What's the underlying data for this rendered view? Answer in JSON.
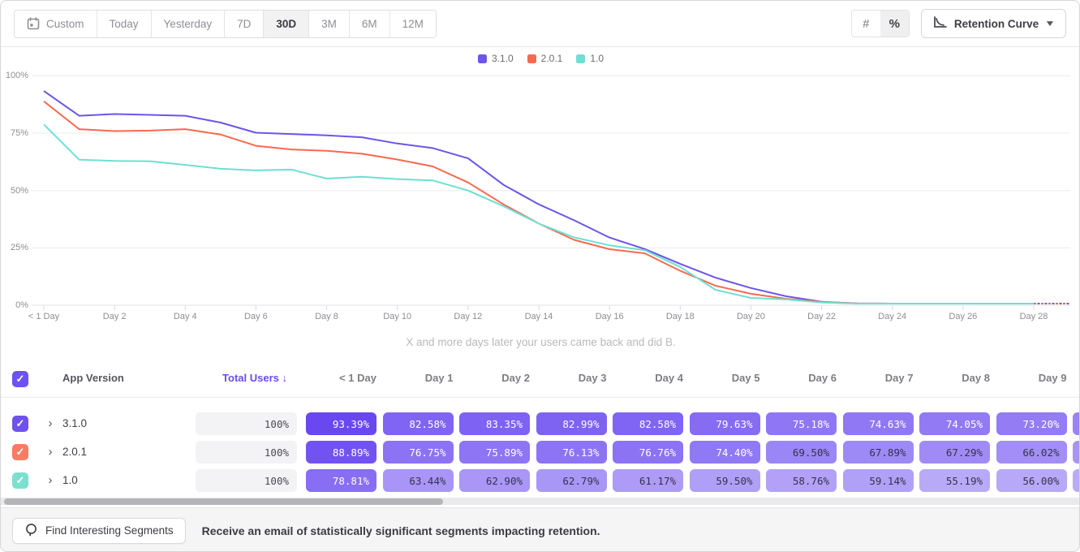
{
  "toolbar": {
    "date_ranges": [
      "Custom",
      "Today",
      "Yesterday",
      "7D",
      "30D",
      "3M",
      "6M",
      "12M"
    ],
    "selected_range": "30D",
    "value_modes": [
      "#",
      "%"
    ],
    "selected_mode": "%",
    "chart_type_label": "Retention Curve"
  },
  "chart_data": {
    "type": "line",
    "title": "",
    "subtitle": "X and more days later your users came back and did B.",
    "legend_position": "top-center",
    "grid": "horizontal",
    "ylim": [
      0,
      100
    ],
    "yticks": [
      "100%",
      "75%",
      "50%",
      "25%",
      "0%"
    ],
    "ytick_values": [
      100,
      75,
      50,
      25,
      0
    ],
    "x_tick_labels": [
      "< 1 Day",
      "Day 2",
      "Day 4",
      "Day 6",
      "Day 8",
      "Day 10",
      "Day 12",
      "Day 14",
      "Day 16",
      "Day 18",
      "Day 20",
      "Day 22",
      "Day 24",
      "Day 26",
      "Day 28"
    ],
    "x_days": [
      0,
      1,
      2,
      3,
      4,
      5,
      6,
      7,
      8,
      9,
      10,
      11,
      12,
      13,
      14,
      15,
      16,
      17,
      18,
      19,
      20,
      21,
      22,
      23,
      24,
      25,
      26,
      27,
      28
    ],
    "series": [
      {
        "name": "3.1.0",
        "color": "#6C55E9",
        "values": [
          93.39,
          82.58,
          83.35,
          82.99,
          82.58,
          79.63,
          75.18,
          74.63,
          74.05,
          73.2,
          70.5,
          68.5,
          64.0,
          52.5,
          44.0,
          37.0,
          29.5,
          24.5,
          18.0,
          12.0,
          7.5,
          3.9,
          1.5,
          0.8,
          0.7,
          0.7,
          0.7,
          0.7,
          0.7
        ]
      },
      {
        "name": "2.0.1",
        "color": "#F8694F",
        "values": [
          88.89,
          76.75,
          75.89,
          76.13,
          76.76,
          74.4,
          69.5,
          67.89,
          67.29,
          66.02,
          63.5,
          60.5,
          53.5,
          44.0,
          35.6,
          28.5,
          24.4,
          22.6,
          15.0,
          8.5,
          5.0,
          2.8,
          1.4,
          0.8,
          0.7,
          0.7,
          0.7,
          0.7,
          0.7
        ]
      },
      {
        "name": "1.0",
        "color": "#6EDFD2",
        "values": [
          78.81,
          63.44,
          62.9,
          62.79,
          61.17,
          59.5,
          58.76,
          59.14,
          55.19,
          56.0,
          55.0,
          54.4,
          50.0,
          43.2,
          35.6,
          29.6,
          26.1,
          24.0,
          16.7,
          6.7,
          3.2,
          2.5,
          1.2,
          0.7,
          0.7,
          0.7,
          0.7,
          0.7,
          0.7
        ]
      }
    ],
    "incomplete_tail": {
      "start_day": 28,
      "value": 0.7,
      "style": "dashed"
    }
  },
  "table": {
    "app_version_header": "App Version",
    "total_users_header": "Total Users ↓",
    "day_headers": [
      "< 1 Day",
      "Day 1",
      "Day 2",
      "Day 3",
      "Day 4",
      "Day 5",
      "Day 6",
      "Day 7",
      "Day 8",
      "Day 9"
    ],
    "rows": [
      {
        "version": "3.1.0",
        "swatch_color": "#6E52F0",
        "total": "100%",
        "cells": [
          "93.39%",
          "82.58%",
          "83.35%",
          "82.99%",
          "82.58%",
          "79.63%",
          "75.18%",
          "74.63%",
          "74.05%",
          "73.20%"
        ]
      },
      {
        "version": "2.0.1",
        "swatch_color": "#F87B62",
        "total": "100%",
        "cells": [
          "88.89%",
          "76.75%",
          "75.89%",
          "76.13%",
          "76.76%",
          "74.40%",
          "69.50%",
          "67.89%",
          "67.29%",
          "66.02%"
        ]
      },
      {
        "version": "1.0",
        "swatch_color": "#7CE0CF",
        "total": "100%",
        "cells": [
          "78.81%",
          "63.44%",
          "62.90%",
          "62.79%",
          "61.17%",
          "59.50%",
          "58.76%",
          "59.14%",
          "55.19%",
          "56.00%"
        ]
      }
    ],
    "check_glyph": "✓",
    "accent_color": "#6544F0"
  },
  "footer": {
    "button_label": "Find Interesting Segments",
    "message": "Receive an email of statistically significant segments impacting retention."
  }
}
